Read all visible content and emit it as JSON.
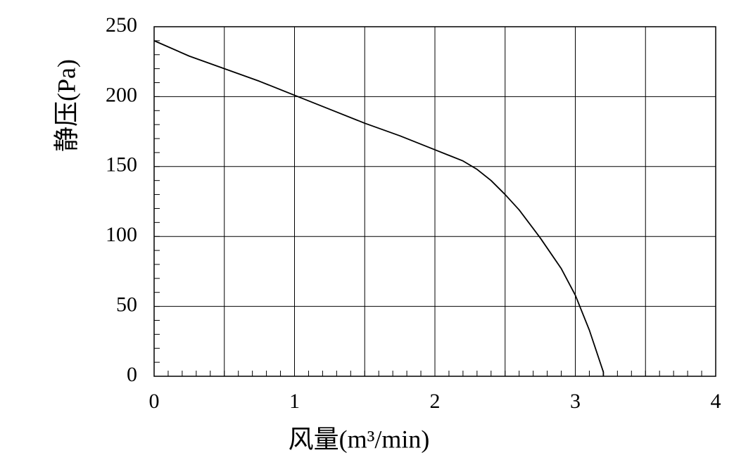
{
  "chart_data": {
    "type": "line",
    "x_label": "风量(m³/min)",
    "y_label": "静压(Pa)",
    "x": [
      0,
      0.25,
      0.5,
      0.75,
      1,
      1.25,
      1.5,
      1.75,
      2,
      2.1,
      2.2,
      2.3,
      2.4,
      2.5,
      2.6,
      2.75,
      2.9,
      3,
      3.1,
      3.15,
      3.2,
      3.2
    ],
    "series": [
      {
        "name": "静压",
        "color": "#000000",
        "values": [
          240,
          229,
          220,
          211,
          201,
          191,
          181,
          172,
          162,
          158,
          154,
          148,
          140,
          130,
          119,
          99,
          77,
          58,
          33,
          18,
          3,
          0
        ]
      }
    ],
    "xlim": [
      0,
      4
    ],
    "ylim": [
      0,
      250
    ],
    "xticks": [
      0,
      1,
      2,
      3,
      4
    ],
    "yticks": [
      0,
      50,
      100,
      150,
      200,
      250
    ],
    "x_gridlines": [
      0.5,
      1,
      1.5,
      2,
      2.5,
      3,
      3.5
    ],
    "x_minor_step": 0.1,
    "y_minor_step": 10,
    "grid": true
  }
}
